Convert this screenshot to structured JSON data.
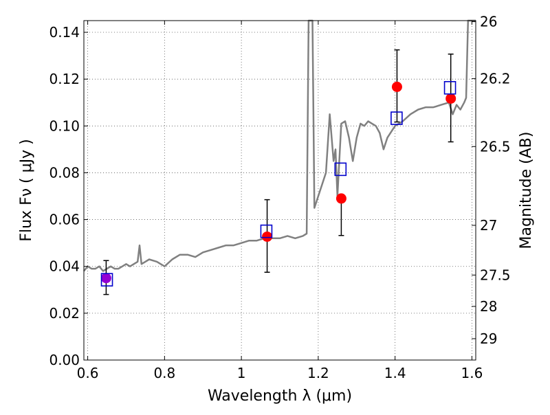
{
  "chart_data": {
    "type": "scatter",
    "xlabel": "Wavelength  λ (μm)",
    "ylabel": "Flux  Fν  ( μJy )",
    "ylabel_right": "Magnitude (AB)",
    "xlim": [
      0.59,
      1.61
    ],
    "ylim": [
      0.0,
      0.145
    ],
    "grid": true,
    "x_ticks": [
      0.6,
      0.8,
      1.0,
      1.2,
      1.4,
      1.6
    ],
    "x_tick_labels": [
      "0.6",
      "0.8",
      "1",
      "1.2",
      "1.4",
      "1.6"
    ],
    "y_ticks": [
      0.0,
      0.02,
      0.04,
      0.06,
      0.08,
      0.1,
      0.12,
      0.14
    ],
    "y_tick_labels": [
      "0.00",
      "0.02",
      "0.04",
      "0.06",
      "0.08",
      "0.10",
      "0.12",
      "0.14"
    ],
    "right_ticks": [
      {
        "mag": 26,
        "label": "26"
      },
      {
        "mag": 26.2,
        "label": "26.2"
      },
      {
        "mag": 26.5,
        "label": "26.5"
      },
      {
        "mag": 27,
        "label": "27"
      },
      {
        "mag": 27.5,
        "label": "27.5"
      },
      {
        "mag": 28,
        "label": "28"
      },
      {
        "mag": 29,
        "label": "29"
      }
    ],
    "observed": [
      {
        "x": 0.648,
        "y": 0.035,
        "yerr_lo": 0.007,
        "yerr_hi": 0.0075,
        "color": "#9400D3"
      },
      {
        "x": 1.067,
        "y": 0.0527,
        "yerr_lo": 0.0152,
        "yerr_hi": 0.0158,
        "color": "#ff0000"
      },
      {
        "x": 1.26,
        "y": 0.069,
        "yerr_lo": 0.0158,
        "yerr_hi": 0.0,
        "color": "#ff0000"
      },
      {
        "x": 1.405,
        "y": 0.1167,
        "yerr_lo": 0.015,
        "yerr_hi": 0.0158,
        "color": "#ff0000"
      },
      {
        "x": 1.545,
        "y": 0.1117,
        "yerr_lo": 0.0185,
        "yerr_hi": 0.019,
        "color": "#ff0000"
      }
    ],
    "model_bandpass": [
      {
        "x": 0.65,
        "y": 0.0343
      },
      {
        "x": 1.065,
        "y": 0.055
      },
      {
        "x": 1.258,
        "y": 0.0815
      },
      {
        "x": 1.404,
        "y": 0.1033
      },
      {
        "x": 1.543,
        "y": 0.1163
      }
    ],
    "model_spectrum": {
      "x": [
        0.59,
        0.6,
        0.61,
        0.62,
        0.63,
        0.64,
        0.65,
        0.66,
        0.67,
        0.68,
        0.69,
        0.7,
        0.71,
        0.72,
        0.73,
        0.735,
        0.74,
        0.75,
        0.76,
        0.78,
        0.8,
        0.82,
        0.84,
        0.86,
        0.88,
        0.9,
        0.92,
        0.94,
        0.96,
        0.98,
        1.0,
        1.02,
        1.04,
        1.06,
        1.08,
        1.1,
        1.12,
        1.14,
        1.16,
        1.17,
        1.175,
        1.178,
        1.185,
        1.19,
        1.2,
        1.21,
        1.22,
        1.23,
        1.24,
        1.245,
        1.25,
        1.26,
        1.27,
        1.28,
        1.29,
        1.3,
        1.31,
        1.32,
        1.33,
        1.34,
        1.35,
        1.36,
        1.37,
        1.38,
        1.4,
        1.42,
        1.44,
        1.46,
        1.48,
        1.5,
        1.52,
        1.54,
        1.55,
        1.56,
        1.57,
        1.58,
        1.585,
        1.59,
        1.595,
        1.6,
        1.61
      ],
      "y": [
        0.038,
        0.04,
        0.039,
        0.039,
        0.04,
        0.038,
        0.039,
        0.04,
        0.039,
        0.039,
        0.04,
        0.041,
        0.04,
        0.041,
        0.042,
        0.049,
        0.041,
        0.042,
        0.043,
        0.042,
        0.04,
        0.043,
        0.045,
        0.045,
        0.044,
        0.046,
        0.047,
        0.048,
        0.049,
        0.049,
        0.05,
        0.051,
        0.051,
        0.052,
        0.052,
        0.052,
        0.053,
        0.052,
        0.053,
        0.054,
        0.145,
        0.145,
        0.145,
        0.065,
        0.07,
        0.075,
        0.08,
        0.105,
        0.085,
        0.09,
        0.07,
        0.101,
        0.102,
        0.095,
        0.085,
        0.095,
        0.101,
        0.1,
        0.102,
        0.101,
        0.1,
        0.097,
        0.09,
        0.095,
        0.1,
        0.102,
        0.105,
        0.107,
        0.108,
        0.108,
        0.109,
        0.11,
        0.105,
        0.109,
        0.107,
        0.11,
        0.112,
        0.145,
        0.145,
        0.145,
        0.145
      ]
    },
    "colors": {
      "spectrum": "#808080",
      "bandpass_box": "#0000cc",
      "errorbar": "#000000",
      "grid": "#555555"
    }
  }
}
